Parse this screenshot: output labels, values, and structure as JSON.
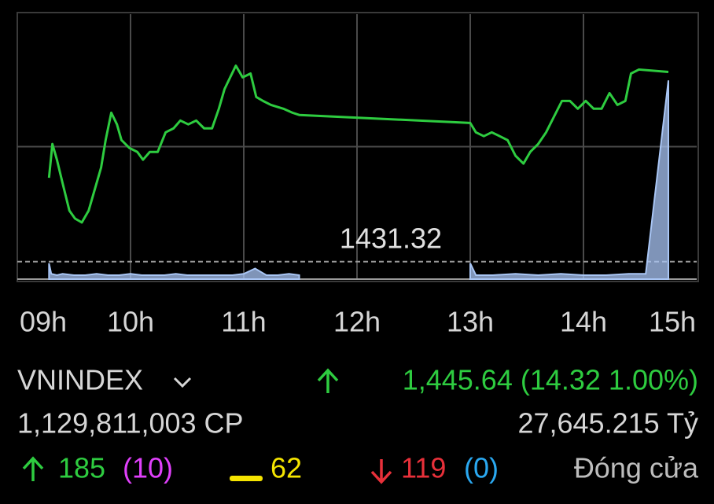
{
  "chart_data": {
    "type": "line",
    "xlim": [
      9,
      15
    ],
    "xticks": [
      {
        "value": 9,
        "label": "09h"
      },
      {
        "value": 10,
        "label": "10h"
      },
      {
        "value": 11,
        "label": "11h"
      },
      {
        "value": 12,
        "label": "12h"
      },
      {
        "value": 13,
        "label": "13h"
      },
      {
        "value": 14,
        "label": "14h"
      },
      {
        "value": 15,
        "label": "15h"
      }
    ],
    "ylim": [
      1430,
      1450
    ],
    "grid_lines": [
      1440
    ],
    "y2lim": [
      0,
      100
    ],
    "reference": 1431.32,
    "series": [
      {
        "color": "#2ecc40",
        "x": [
          9.28,
          9.31,
          9.35,
          9.4,
          9.46,
          9.51,
          9.57,
          9.63,
          9.68,
          9.74,
          9.78,
          9.83,
          9.88,
          9.92,
          9.99,
          10.06,
          10.11,
          10.17,
          10.24,
          10.31,
          10.38,
          10.44,
          10.51,
          10.58,
          10.65,
          10.72,
          10.78,
          10.83,
          10.88,
          10.93,
          10.99,
          11.06,
          11.11,
          11.17,
          11.24,
          11.35,
          11.43,
          11.49,
          13.0,
          13.05,
          13.12,
          13.19,
          13.26,
          13.33,
          13.4,
          13.47,
          13.53,
          13.6,
          13.67,
          13.74,
          13.81,
          13.88,
          13.95,
          14.02,
          14.09,
          14.16,
          14.23,
          14.3,
          14.37,
          14.42,
          14.49,
          14.75
        ],
        "values": [
          1437.65,
          1440.2,
          1439.01,
          1437.24,
          1435.17,
          1434.57,
          1434.28,
          1435.17,
          1436.65,
          1438.42,
          1440.49,
          1442.56,
          1441.68,
          1440.49,
          1439.9,
          1439.6,
          1439.01,
          1439.6,
          1439.6,
          1441.08,
          1441.38,
          1441.97,
          1441.68,
          1441.97,
          1441.38,
          1441.38,
          1442.86,
          1444.34,
          1445.23,
          1446.11,
          1445.23,
          1445.52,
          1443.75,
          1443.45,
          1443.15,
          1442.86,
          1442.56,
          1442.39,
          1441.79,
          1441.08,
          1440.79,
          1441.08,
          1440.79,
          1440.49,
          1439.31,
          1438.72,
          1439.6,
          1440.2,
          1441.08,
          1442.27,
          1443.45,
          1443.45,
          1442.86,
          1443.45,
          1442.86,
          1442.86,
          1444.04,
          1443.15,
          1443.45,
          1445.52,
          1445.82,
          1445.64
        ]
      },
      {
        "color": "#a9c6f5",
        "axis": "y2",
        "x": [
          9.28,
          9.3,
          9.35,
          9.4,
          9.5,
          9.6,
          9.7,
          9.8,
          9.9,
          10.0,
          10.1,
          10.2,
          10.3,
          10.4,
          10.5,
          10.6,
          10.7,
          10.8,
          10.9,
          11.0,
          11.1,
          11.2,
          11.3,
          11.4,
          11.49,
          11.5,
          13.0,
          13.05,
          13.2,
          13.4,
          13.6,
          13.8,
          14.0,
          14.2,
          14.4,
          14.55,
          14.75
        ],
        "values": [
          6,
          2,
          1.5,
          2,
          1.5,
          1.5,
          2,
          1.5,
          1.5,
          2,
          1.5,
          1.5,
          1.5,
          2,
          1.5,
          1.5,
          1.5,
          1.5,
          1.5,
          2,
          4,
          1.5,
          1.5,
          2,
          1.5,
          null,
          6,
          1.5,
          1.5,
          2,
          1.5,
          2,
          1.5,
          1.5,
          2,
          2,
          75
        ]
      }
    ]
  },
  "summary": {
    "index": "VNINDEX",
    "change": "1,445.64 (14.32 1.00%)",
    "volume": "1,129,811,003 CP",
    "turnover": "27,645.215 Tỷ",
    "advancers": "185",
    "ceiling": "(10)",
    "unchanged": "62",
    "decliners": "119",
    "floor": "(0)",
    "status": "Đóng cửa"
  }
}
